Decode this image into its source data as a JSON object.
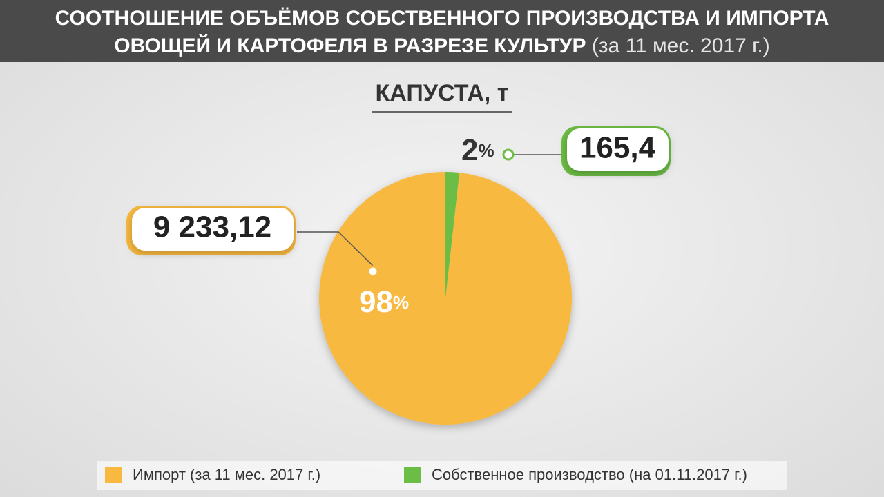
{
  "chart_data": {
    "type": "pie",
    "title": [
      "СООТНОШЕНИЕ ОБЪЁМОВ СОБСТВЕННОГО ПРОИЗВОДСТВА И ИМПОРТА",
      "ОВОЩЕЙ И КАРТОФЕЛЯ В РАЗРЕЗЕ КУЛЬТУР"
    ],
    "title_note": "(за 11 мес. 2017 г.)",
    "subtitle": "КАПУСТА, т",
    "categories": [
      "Импорт (за 11 мес. 2017 г.)",
      "Собственное производство (на 01.11.2017 г.)"
    ],
    "values": [
      9233.12,
      165.4
    ],
    "value_labels": [
      "9 233,12",
      "165,4"
    ],
    "percents": [
      98,
      2
    ],
    "percent_unit": "%",
    "colors": [
      "#f8b940",
      "#6cbd45"
    ]
  }
}
